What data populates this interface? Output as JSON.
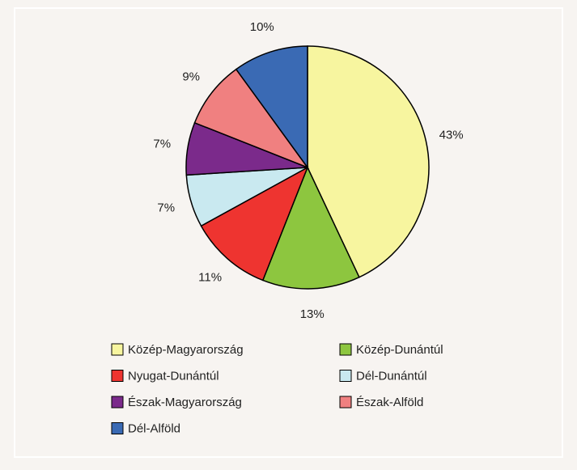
{
  "chart_data": {
    "type": "pie",
    "categories": [
      "Közép-Magyarország",
      "Közép-Dunántúl",
      "Nyugat-Dunántúl",
      "Dél-Dunántúl",
      "Észak-Magyarország",
      "Észak-Alföld",
      "Dél-Alföld"
    ],
    "values": [
      43,
      13,
      11,
      7,
      7,
      9,
      10
    ],
    "colors": [
      "#f7f59f",
      "#8dc63f",
      "#ee3430",
      "#c9e9f0",
      "#7b2a8b",
      "#f08080",
      "#3a6ab4"
    ],
    "value_labels": [
      "43%",
      "13%",
      "11%",
      "7%",
      "7%",
      "9%",
      "10%"
    ],
    "legend": "bottom"
  }
}
